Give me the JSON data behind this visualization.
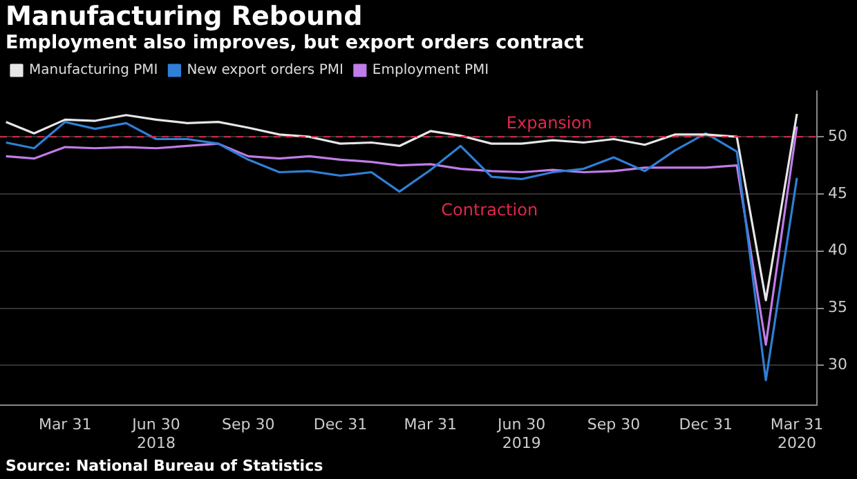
{
  "chart_data": {
    "type": "line",
    "title": "Manufacturing Rebound",
    "subtitle": "Employment also improves, but export orders contract",
    "x": [
      "2018-01-31",
      "2018-02-28",
      "2018-03-31",
      "2018-04-30",
      "2018-05-31",
      "2018-06-30",
      "2018-07-31",
      "2018-08-31",
      "2018-09-30",
      "2018-10-31",
      "2018-11-30",
      "2018-12-31",
      "2019-01-31",
      "2019-02-28",
      "2019-03-31",
      "2019-04-30",
      "2019-05-31",
      "2019-06-30",
      "2019-07-31",
      "2019-08-31",
      "2019-09-30",
      "2019-10-31",
      "2019-11-30",
      "2019-12-31",
      "2020-01-31",
      "2020-02-29",
      "2020-03-31"
    ],
    "series": [
      {
        "name": "Manufacturing PMI",
        "color": "#e6e6e6",
        "values": [
          51.3,
          50.3,
          51.5,
          51.4,
          51.9,
          51.5,
          51.2,
          51.3,
          50.8,
          50.2,
          50.0,
          49.4,
          49.5,
          49.2,
          50.5,
          50.1,
          49.4,
          49.4,
          49.7,
          49.5,
          49.8,
          49.3,
          50.2,
          50.2,
          50.0,
          35.7,
          52.0
        ]
      },
      {
        "name": "New export orders PMI",
        "color": "#2f7fd6",
        "values": [
          49.5,
          49.0,
          51.3,
          50.7,
          51.2,
          49.8,
          49.8,
          49.4,
          48.0,
          46.9,
          47.0,
          46.6,
          46.9,
          45.2,
          47.1,
          49.2,
          46.5,
          46.3,
          46.9,
          47.2,
          48.2,
          47.0,
          48.8,
          50.3,
          48.7,
          28.7,
          46.4
        ]
      },
      {
        "name": "Employment PMI",
        "color": "#c07ce8",
        "values": [
          48.3,
          48.1,
          49.1,
          49.0,
          49.1,
          49.0,
          49.2,
          49.4,
          48.3,
          48.1,
          48.3,
          48.0,
          47.8,
          47.5,
          47.6,
          47.2,
          47.0,
          46.9,
          47.1,
          46.9,
          47.0,
          47.3,
          47.3,
          47.3,
          47.5,
          31.8,
          50.9
        ]
      }
    ],
    "xlim": [
      "2018-01-25",
      "2020-04-20"
    ],
    "xticks": [
      {
        "value": "2018-03-31",
        "label": "Mar 31"
      },
      {
        "value": "2018-06-30",
        "label": "Jun 30\n2018"
      },
      {
        "value": "2018-09-30",
        "label": "Sep 30"
      },
      {
        "value": "2018-12-31",
        "label": "Dec 31"
      },
      {
        "value": "2019-03-31",
        "label": "Mar 31"
      },
      {
        "value": "2019-06-30",
        "label": "Jun 30\n2019"
      },
      {
        "value": "2019-09-30",
        "label": "Sep 30"
      },
      {
        "value": "2019-12-31",
        "label": "Dec 31"
      },
      {
        "value": "2020-03-31",
        "label": "Mar 31\n2020"
      }
    ],
    "ylim": [
      26.5,
      54
    ],
    "yticks": [
      30,
      35,
      40,
      45,
      50
    ],
    "ref_lines": [
      {
        "axis": "y",
        "value": 50,
        "label": "Expansion",
        "color": "#e0284a",
        "line_style": "dashed"
      }
    ],
    "annotations": [
      "Contraction",
      "Source: National Bureau of Statistics"
    ],
    "grid": "y",
    "legend": "top left",
    "marker": "none",
    "line_style": "solid"
  }
}
